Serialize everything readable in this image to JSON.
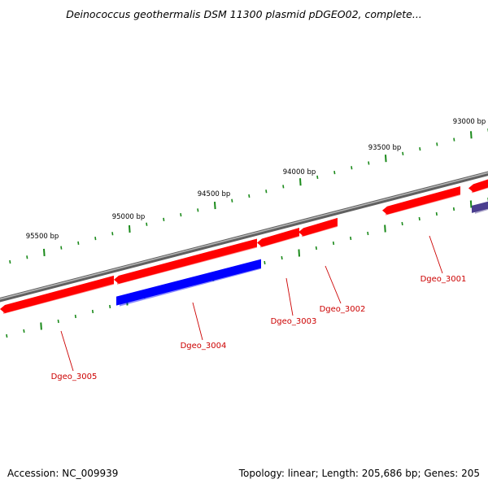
{
  "title": "Deinococcus geothermalis DSM 11300 plasmid pDGEO02, complete...",
  "footer": {
    "accession": "Accession: NC_009939",
    "summary": "Topology: linear; Length: 205,686 bp; Genes: 205"
  },
  "colors": {
    "backbone": "#808080",
    "forward_gene": "#ff0000",
    "reverse_gene": "#0000ff",
    "reverse_gene_alt": "#4b3f8f",
    "tick": "#1a8a1a",
    "gene_label": "#cc0000"
  },
  "scale_labels": [
    "95500 bp",
    "95000 bp",
    "94500 bp",
    "94000 bp",
    "93500 bp",
    "93000 bp"
  ],
  "genes": [
    {
      "label": "Dgeo_3005",
      "strand": "forward"
    },
    {
      "label": "Dgeo_3004",
      "strand": "reverse"
    },
    {
      "label": "Dgeo_3003",
      "strand": "forward"
    },
    {
      "label": "Dgeo_3002",
      "strand": "forward"
    },
    {
      "label": "Dgeo_3001",
      "strand": "forward"
    }
  ]
}
